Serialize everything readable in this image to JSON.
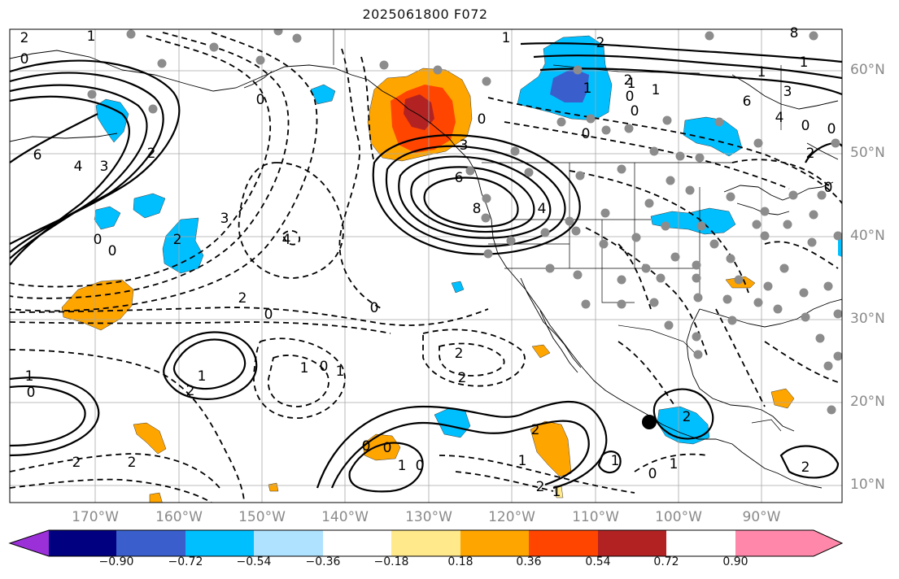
{
  "title": "2025061800 F072",
  "lat_labels": [
    "60°N",
    "50°N",
    "40°N",
    "30°N",
    "20°N",
    "10°N"
  ],
  "lon_labels": [
    "170°W",
    "160°W",
    "150°W",
    "140°W",
    "130°W",
    "120°W",
    "110°W",
    "100°W",
    "90°W"
  ],
  "colorbar": {
    "colors": [
      "#9b30d8",
      "#000080",
      "#3a5fcd",
      "#00bfff",
      "#aee2ff",
      "#ffffff",
      "#ffe98a",
      "#ffa500",
      "#ff4500",
      "#b22222",
      "#ff88aa"
    ],
    "tick_labels": [
      "−0.90",
      "−0.72",
      "−0.54",
      "−0.36",
      "−0.18",
      "0.18",
      "0.36",
      "0.54",
      "0.72",
      "0.90"
    ]
  },
  "contour_labels": [
    "2",
    "1",
    "0",
    "6",
    "4",
    "3",
    "2",
    "0",
    "0",
    "3",
    "4",
    "2",
    "0",
    "2",
    "0",
    "3",
    "8",
    "6",
    "4",
    "2",
    "1",
    "0",
    "2",
    "0",
    "1",
    "0",
    "1",
    "1",
    "3",
    "6",
    "4",
    "8",
    "0",
    "2",
    "0",
    "2",
    "2",
    "1",
    "0",
    "1",
    "1",
    "2",
    "0",
    "1",
    "0",
    "2",
    "2",
    "0",
    "0",
    "1",
    "0",
    "2",
    "1",
    "2",
    "1",
    "2",
    "0",
    "1",
    "1",
    "2",
    "0",
    "1",
    "1",
    "0"
  ],
  "marker": {
    "label": "station marker"
  }
}
